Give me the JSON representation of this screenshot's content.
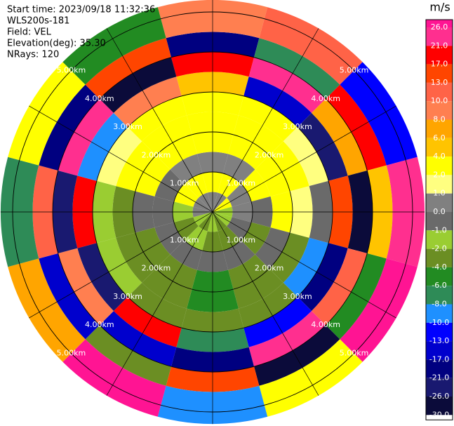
{
  "chart_data": {
    "type": "ppi",
    "info": [
      "Start time: 2023/09/18 11:32:36",
      "WLS200s-181",
      "Field: VEL",
      "Elevation(deg): 35.30",
      "NRays: 120"
    ],
    "azimuths": [
      0,
      30,
      60,
      90,
      120,
      150,
      180,
      210,
      240,
      270,
      300,
      330
    ],
    "range_edges": [
      0,
      0.5,
      1,
      1.5,
      2,
      2.5,
      3,
      3.5,
      4,
      4.5,
      5.3
    ],
    "values": [
      [
        0.5,
        3,
        0.5,
        3,
        3,
        3,
        5,
        17,
        -21,
        9
      ],
      [
        0.5,
        3,
        0.5,
        3,
        3,
        3,
        -15,
        24,
        -8,
        12
      ],
      [
        3,
        0.5,
        3,
        3,
        3,
        1.5,
        -24,
        7,
        19,
        -11
      ],
      [
        -1.5,
        0.5,
        -0.5,
        3,
        1.5,
        -0.5,
        14,
        -28,
        5,
        22
      ],
      [
        -1.5,
        -0.5,
        -3,
        -0.5,
        -3,
        -9,
        -18,
        11,
        -5,
        27
      ],
      [
        -3,
        -3,
        -0.5,
        -3,
        -3,
        -3,
        -12,
        23,
        -27,
        3
      ],
      [
        -1.5,
        -3,
        -0.5,
        -5,
        -5,
        -3,
        -7,
        -19,
        15,
        -9
      ],
      [
        -3,
        -1.5,
        -0.5,
        -3,
        -3,
        -3,
        20,
        -14,
        -2.5,
        28
      ],
      [
        -1.5,
        -3,
        -0.5,
        -3,
        -3,
        -1.5,
        -25,
        9,
        -16,
        6
      ],
      [
        0.5,
        -1.5,
        -0.5,
        -0.5,
        -3,
        -1.5,
        18,
        -23,
        11,
        -7
      ],
      [
        0.5,
        3,
        -0.5,
        3,
        3,
        1.5,
        -10,
        25,
        -19,
        3
      ],
      [
        0.5,
        3,
        0.5,
        3,
        3,
        3,
        9,
        -27,
        15,
        -6
      ]
    ],
    "rings": [
      {
        "value": 1,
        "label": "1.00km"
      },
      {
        "value": 2,
        "label": "2.00km"
      },
      {
        "value": 3,
        "label": "3.00km"
      },
      {
        "value": 4,
        "label": "4.00km"
      },
      {
        "value": 5,
        "label": "5.00km"
      }
    ],
    "colorbar": {
      "label": "m/s",
      "ticks": [
        {
          "value": 26,
          "label": "26.0"
        },
        {
          "value": 21,
          "label": "21.0"
        },
        {
          "value": 17,
          "label": "17.0"
        },
        {
          "value": 13,
          "label": "13.0"
        },
        {
          "value": 10,
          "label": "10.0"
        },
        {
          "value": 8,
          "label": "8.0"
        },
        {
          "value": 6,
          "label": "6.0"
        },
        {
          "value": 4,
          "label": "4.0"
        },
        {
          "value": 2,
          "label": "2.0"
        },
        {
          "value": 1,
          "label": "1.0"
        },
        {
          "value": 0,
          "label": "0.0"
        },
        {
          "value": -1,
          "label": "-1.0"
        },
        {
          "value": -2,
          "label": "-2.0"
        },
        {
          "value": -4,
          "label": "-4.0"
        },
        {
          "value": -6,
          "label": "-6.0"
        },
        {
          "value": -8,
          "label": "-8.0"
        },
        {
          "value": -10,
          "label": "-10.0"
        },
        {
          "value": -13,
          "label": "-13.0"
        },
        {
          "value": -17,
          "label": "-17.0"
        },
        {
          "value": -21,
          "label": "-21.0"
        },
        {
          "value": -26,
          "label": "-26.0"
        },
        {
          "value": -30,
          "label": "-30.0"
        }
      ],
      "colors": [
        "#ff1493",
        "#ff2f8f",
        "#ff0000",
        "#ff4500",
        "#ff6347",
        "#ff7f50",
        "#ffa500",
        "#ffc400",
        "#ffff00",
        "#ffff80",
        "#808080",
        "#6a6a6a",
        "#9acd32",
        "#6b8e23",
        "#228b22",
        "#2e8b57",
        "#1e90ff",
        "#0000ff",
        "#0000cd",
        "#000080",
        "#191970",
        "#0b0b3a"
      ]
    }
  }
}
